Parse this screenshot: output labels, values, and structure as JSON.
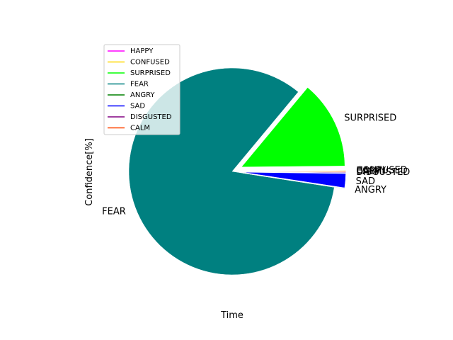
{
  "chart_data": {
    "type": "pie",
    "xlabel": "Time",
    "ylabel": "Confidence[%]",
    "legend_position": "top-left",
    "slices": [
      {
        "label": "HAPPY",
        "value": 0.05,
        "color": "#ff00ff",
        "exploded": true
      },
      {
        "label": "CONFUSED",
        "value": 0.1,
        "color": "#ffd700",
        "exploded": true
      },
      {
        "label": "SURPRISED",
        "value": 13.8,
        "color": "#00ff00",
        "exploded": true
      },
      {
        "label": "FEAR",
        "value": 83.6,
        "color": "#008080",
        "exploded": false
      },
      {
        "label": "ANGRY",
        "value": 0.05,
        "color": "#008000",
        "exploded": true
      },
      {
        "label": "SAD",
        "value": 2.2,
        "color": "#0000ff",
        "exploded": true
      },
      {
        "label": "DISGUSTED",
        "value": 0.1,
        "color": "#800080",
        "exploded": true
      },
      {
        "label": "CALM",
        "value": 0.1,
        "color": "#ff4500",
        "exploded": true
      }
    ],
    "legend": [
      "HAPPY",
      "CONFUSED",
      "SURPRISED",
      "FEAR",
      "ANGRY",
      "SAD",
      "DISGUSTED",
      "CALM"
    ]
  }
}
